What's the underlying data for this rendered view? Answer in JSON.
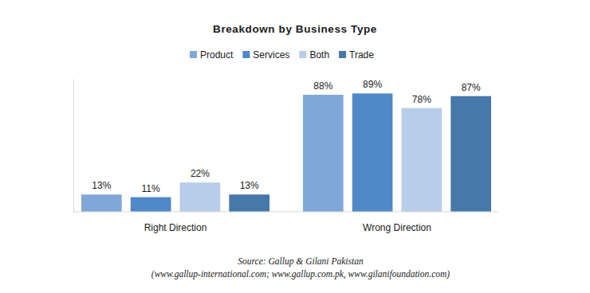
{
  "chart_data": {
    "type": "bar",
    "title": "Breakdown by Business Type",
    "categories": [
      "Right Direction",
      "Wrong Direction"
    ],
    "series": [
      {
        "name": "Product",
        "color": "#7fa8d8",
        "values": [
          13,
          88
        ],
        "value_labels": [
          "13%",
          "88%"
        ]
      },
      {
        "name": "Services",
        "color": "#4f89c7",
        "values": [
          11,
          89
        ],
        "value_labels": [
          "11%",
          "89%"
        ]
      },
      {
        "name": "Both",
        "color": "#b8cde9",
        "values": [
          22,
          78
        ],
        "value_labels": [
          "22%",
          "78%"
        ]
      },
      {
        "name": "Trade",
        "color": "#4678a9",
        "values": [
          13,
          87
        ],
        "value_labels": [
          "13%",
          "87%"
        ]
      }
    ],
    "ylim": [
      0,
      100
    ],
    "data_labels": true,
    "tick_labels": "x",
    "legend": "top",
    "annotations": [
      "Source: Gallup & Gilani Pakistan",
      "(www.gallup-international.com; www.gallup.com.pk, www.gilanifoundation.com)"
    ]
  }
}
